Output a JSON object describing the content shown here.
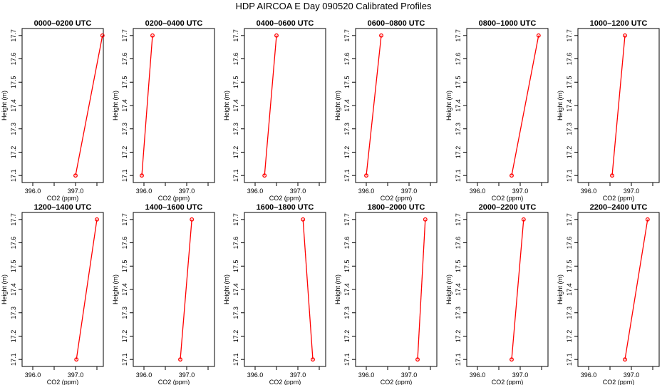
{
  "title": "HDP AIRCOA E  Day 090520  Calibrated Profiles",
  "chart_data": {
    "type": "line",
    "xlabel": "CO2 (ppm)",
    "ylabel": "Height (m)",
    "xlim": [
      395.75,
      397.65
    ],
    "ylim": [
      17.07,
      17.73
    ],
    "x_ticks": [
      "396.0",
      "397.0"
    ],
    "x_minor_ticks": [
      396.5,
      397.5
    ],
    "y_ticks": [
      "17.1",
      "17.2",
      "17.3",
      "17.4",
      "17.5",
      "17.6",
      "17.7"
    ],
    "line_color": "#ff0000",
    "panels": [
      {
        "title": "0000–0200 UTC",
        "points": [
          {
            "x": 397.0,
            "y": 17.1
          },
          {
            "x": 397.63,
            "y": 17.7
          }
        ]
      },
      {
        "title": "0200–0400 UTC",
        "points": [
          {
            "x": 395.95,
            "y": 17.1
          },
          {
            "x": 396.2,
            "y": 17.7
          }
        ]
      },
      {
        "title": "0400–0600 UTC",
        "points": [
          {
            "x": 396.22,
            "y": 17.1
          },
          {
            "x": 396.5,
            "y": 17.7
          }
        ]
      },
      {
        "title": "0600–0800 UTC",
        "points": [
          {
            "x": 396.0,
            "y": 17.1
          },
          {
            "x": 396.35,
            "y": 17.7
          }
        ]
      },
      {
        "title": "0800–1000 UTC",
        "points": [
          {
            "x": 396.8,
            "y": 17.1
          },
          {
            "x": 397.43,
            "y": 17.7
          }
        ]
      },
      {
        "title": "1000–1200 UTC",
        "points": [
          {
            "x": 396.55,
            "y": 17.1
          },
          {
            "x": 396.85,
            "y": 17.7
          }
        ]
      },
      {
        "title": "1200–1400 UTC",
        "points": [
          {
            "x": 397.02,
            "y": 17.1
          },
          {
            "x": 397.5,
            "y": 17.7
          }
        ]
      },
      {
        "title": "1400–1600 UTC",
        "points": [
          {
            "x": 396.85,
            "y": 17.1
          },
          {
            "x": 397.12,
            "y": 17.7
          }
        ]
      },
      {
        "title": "1600–1800 UTC",
        "points": [
          {
            "x": 397.35,
            "y": 17.1
          },
          {
            "x": 397.12,
            "y": 17.7
          }
        ]
      },
      {
        "title": "1800–2000 UTC",
        "points": [
          {
            "x": 397.2,
            "y": 17.1
          },
          {
            "x": 397.38,
            "y": 17.7
          }
        ]
      },
      {
        "title": "2000–2200 UTC",
        "points": [
          {
            "x": 396.8,
            "y": 17.1
          },
          {
            "x": 397.08,
            "y": 17.7
          }
        ]
      },
      {
        "title": "2200–2400 UTC",
        "points": [
          {
            "x": 396.85,
            "y": 17.1
          },
          {
            "x": 397.38,
            "y": 17.7
          }
        ]
      }
    ]
  }
}
